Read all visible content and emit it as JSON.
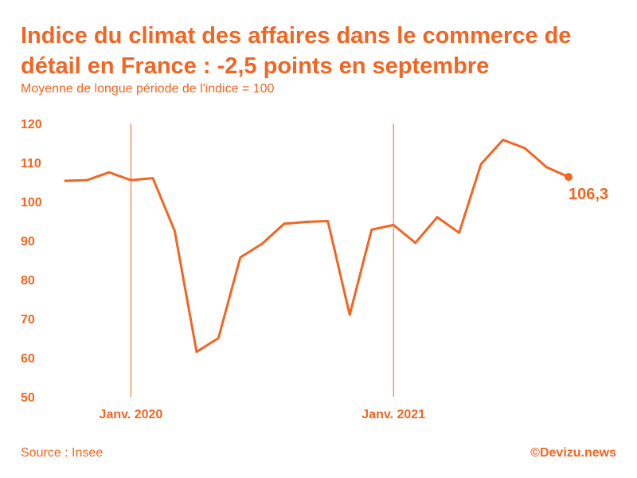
{
  "header": {
    "title": "Indice du climat des affaires dans le commerce de détail en France : -2,5 points en septembre",
    "subtitle": "Moyenne de longue période de l'indice = 100"
  },
  "footer": {
    "source": "Source : Insee",
    "brand": "©Devizu.news"
  },
  "colors": {
    "accent": "#f26522",
    "line": "#f26522"
  },
  "chart_data": {
    "type": "line",
    "x_unit": "month",
    "x": [
      0,
      1,
      2,
      3,
      4,
      5,
      6,
      7,
      8,
      9,
      10,
      11,
      12,
      13,
      14,
      15,
      16,
      17,
      18,
      19,
      20,
      21,
      22,
      23
    ],
    "values": [
      105.3,
      105.5,
      107.5,
      105.5,
      106.0,
      92.5,
      61.5,
      65.0,
      85.7,
      89.2,
      94.3,
      94.8,
      95.0,
      71.0,
      92.8,
      94.0,
      89.4,
      96.0,
      92.0,
      109.6,
      115.8,
      113.7,
      108.8,
      106.3
    ],
    "ylim": [
      50,
      120
    ],
    "yticks": [
      120,
      110,
      100,
      90,
      80,
      70,
      60,
      50
    ],
    "xticks": [
      {
        "x": 3,
        "label": "Janv. 2020"
      },
      {
        "x": 15,
        "label": "Janv. 2021"
      }
    ],
    "vlines": [
      3,
      15
    ],
    "end_label": "106,3",
    "grid": false,
    "legend": "none"
  }
}
